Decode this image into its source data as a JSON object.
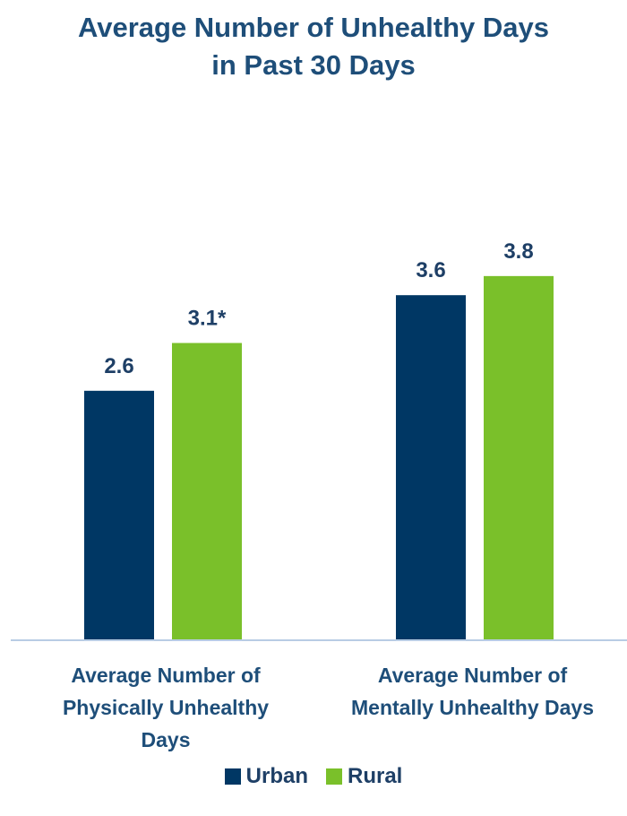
{
  "chart_data": {
    "type": "bar",
    "title_lines": [
      "Average Number of Unhealthy Days",
      "in Past 30 Days"
    ],
    "categories": [
      [
        "Average Number of",
        "Physically Unhealthy",
        "Days"
      ],
      [
        "Average Number of",
        "Mentally Unhealthy Days"
      ]
    ],
    "series": [
      {
        "name": "Urban",
        "values": [
          2.6,
          3.6
        ],
        "labels": [
          "2.6",
          "3.6"
        ],
        "color": "#003764"
      },
      {
        "name": "Rural",
        "values": [
          3.1,
          3.8
        ],
        "labels": [
          "3.1*",
          "3.8"
        ],
        "color": "#7ac02a"
      }
    ],
    "ylim": [
      0,
      6.5
    ],
    "grid": false,
    "legend_position": "bottom",
    "axis_color": "#b8cce4"
  }
}
